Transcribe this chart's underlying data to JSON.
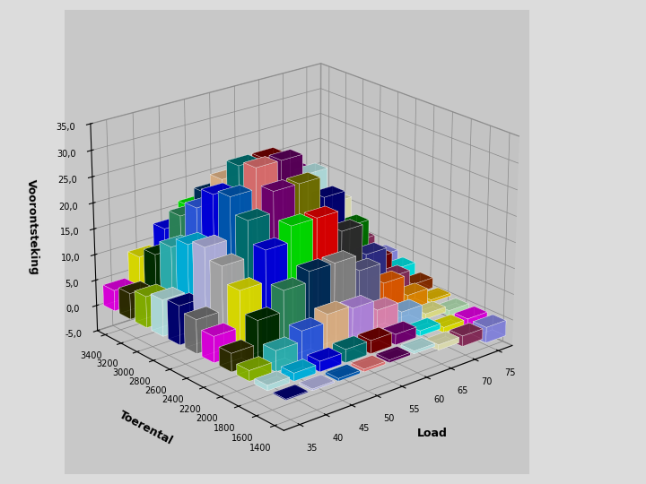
{
  "xlabel": "Load",
  "ylabel": "Toerental",
  "zlabel": "Voorontsteking",
  "load_values": [
    75,
    70,
    65,
    60,
    55,
    50,
    45,
    40,
    35
  ],
  "rpm_values": [
    1400,
    1600,
    1800,
    2000,
    2200,
    2400,
    2600,
    2800,
    3000,
    3200,
    3400
  ],
  "zlim": [
    -5,
    35
  ],
  "data": [
    [
      -3.0,
      -2.0,
      -1.0,
      0.5,
      0.5,
      0.5,
      0.5,
      0.3,
      0.2
    ],
    [
      -2.0,
      -1.0,
      1.0,
      2.0,
      2.5,
      2.5,
      2.0,
      1.5,
      1.0
    ],
    [
      -1.0,
      1.0,
      3.0,
      5.0,
      7.0,
      7.5,
      6.0,
      4.0,
      2.0
    ],
    [
      0.5,
      3.0,
      7.0,
      11.0,
      14.0,
      14.0,
      12.0,
      8.0,
      3.5
    ],
    [
      2.0,
      5.0,
      11.0,
      17.0,
      21.0,
      21.0,
      18.0,
      12.0,
      5.0
    ],
    [
      3.5,
      7.0,
      15.0,
      22.0,
      26.0,
      26.0,
      22.0,
      15.0,
      6.5
    ],
    [
      4.5,
      9.0,
      18.0,
      25.0,
      29.0,
      29.0,
      25.0,
      17.0,
      7.5
    ],
    [
      4.0,
      8.5,
      17.0,
      24.0,
      28.0,
      28.0,
      24.0,
      16.0,
      7.0
    ],
    [
      3.0,
      7.0,
      14.0,
      20.0,
      24.0,
      24.0,
      20.0,
      14.0,
      6.0
    ],
    [
      2.0,
      5.5,
      11.0,
      16.0,
      20.0,
      20.0,
      17.0,
      11.0,
      5.0
    ],
    [
      1.0,
      4.0,
      8.0,
      13.0,
      16.0,
      16.0,
      13.0,
      9.0,
      4.0
    ]
  ],
  "bar_colors_by_load": [
    "#E8E8FF",
    "#AAAAFF",
    "#7777DD",
    "#5555BB",
    "#333399",
    "#AA44AA",
    "#FF00FF",
    "#FF44FF",
    "#FFAAFF"
  ],
  "excel_colors": [
    "#9999FF",
    "#993366",
    "#FFFFCC",
    "#CCFFFF",
    "#660066",
    "#FF8080",
    "#0066CC",
    "#CCCCFF",
    "#000080",
    "#FF00FF",
    "#FFFF00",
    "#00FFFF",
    "#800080",
    "#800000",
    "#008080",
    "#0000FF",
    "#00CCFF",
    "#CCFFFF",
    "#CCFFCC",
    "#FFFF99",
    "#99CCFF",
    "#FF99CC",
    "#CC99FF",
    "#FFCC99",
    "#3366FF",
    "#33CCCC",
    "#99CC00",
    "#FFCC00",
    "#FF9900",
    "#FF6600",
    "#666699",
    "#969696",
    "#003366",
    "#339966",
    "#003300",
    "#333300",
    "#993300",
    "#993366",
    "#333399",
    "#333333",
    "#FF0000",
    "#00FF00",
    "#0000FF",
    "#FFFF00",
    "#FF00FF",
    "#00FFFF",
    "#800000",
    "#008000",
    "#000080",
    "#808000",
    "#800080",
    "#008080",
    "#C0C0C0",
    "#808080",
    "#9999FF",
    "#993366",
    "#FFFFCC",
    "#CCFFFF",
    "#660066",
    "#FF8080",
    "#0066CC",
    "#CCCCFF",
    "#000080",
    "#FF00FF",
    "#FFFF00",
    "#00FFFF",
    "#800080",
    "#800000",
    "#008080",
    "#0000FF",
    "#00CCFF",
    "#CCFFFF",
    "#CCFFCC",
    "#FFFF99",
    "#99CCFF",
    "#FF99CC",
    "#CC99FF",
    "#FFCC99",
    "#3366FF",
    "#33CCCC",
    "#99CC00",
    "#FFCC00",
    "#FF9900",
    "#FF6600",
    "#666699",
    "#969696",
    "#003366",
    "#339966",
    "#003300",
    "#333300",
    "#993300",
    "#993366",
    "#333399",
    "#333333",
    "#FF0000",
    "#00FF00",
    "#0000FF",
    "#FFFF00",
    "#FF00FF",
    "#00FFFF"
  ],
  "zticks": [
    -5,
    0,
    5,
    10,
    15,
    20,
    25,
    30,
    35
  ],
  "ztick_labels": [
    "-5,0",
    "0,0",
    "5,0",
    "10,0",
    "15,0",
    "20,0",
    "25,0",
    "30,0",
    "35,0"
  ],
  "bg_color": "#C8C8C8",
  "pane_color": "#B8B8B8",
  "floor_color": "#A8A8A8"
}
